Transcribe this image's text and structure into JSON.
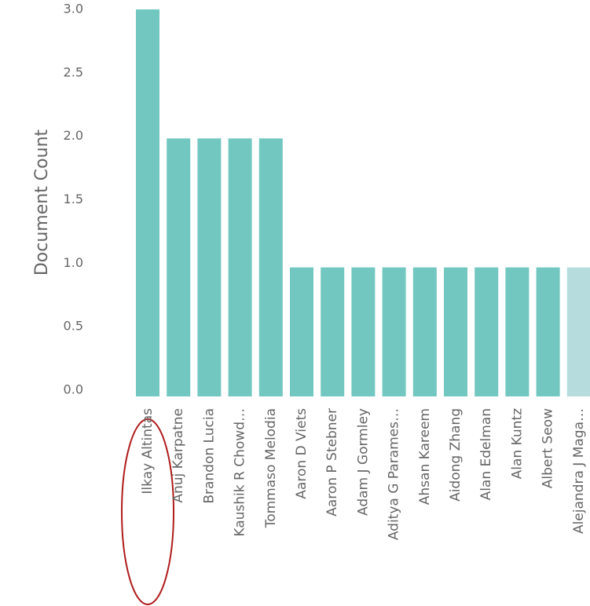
{
  "chart_data": {
    "type": "bar",
    "y_label": "Document Count",
    "categories": [
      "Ilkay Altintas",
      "Anuj Karpatne",
      "Brandon Lucia",
      "Kaushik R Chowd…",
      "Tommaso Melodia",
      "Aaron D Viets",
      "Aaron P Stebner",
      "Adam J Gormley",
      "Aditya G Parames…",
      "Ahsan Kareem",
      "Aidong Zhang",
      "Alan Edelman",
      "Alan Kuntz",
      "Albert Seow",
      "Alejandra J Maga…"
    ],
    "values": [
      3,
      2,
      2,
      2,
      2,
      1,
      1,
      1,
      1,
      1,
      1,
      1,
      1,
      1,
      1
    ],
    "colors": [
      "#72c7c0",
      "#72c7c0",
      "#72c7c0",
      "#72c7c0",
      "#72c7c0",
      "#72c7c0",
      "#72c7c0",
      "#72c7c0",
      "#72c7c0",
      "#72c7c0",
      "#72c7c0",
      "#72c7c0",
      "#72c7c0",
      "#72c7c0",
      "#b6dcdd"
    ],
    "ylim": [
      0,
      3
    ],
    "yticks": [
      {
        "value": 0,
        "label": "0.0"
      },
      {
        "value": 0.5,
        "label": "0.5"
      },
      {
        "value": 1,
        "label": "1.0"
      },
      {
        "value": 1.5,
        "label": "1.5"
      },
      {
        "value": 2,
        "label": "2.0"
      },
      {
        "value": 2.5,
        "label": "2.5"
      },
      {
        "value": 3,
        "label": "3.0"
      }
    ],
    "grid": false
  }
}
